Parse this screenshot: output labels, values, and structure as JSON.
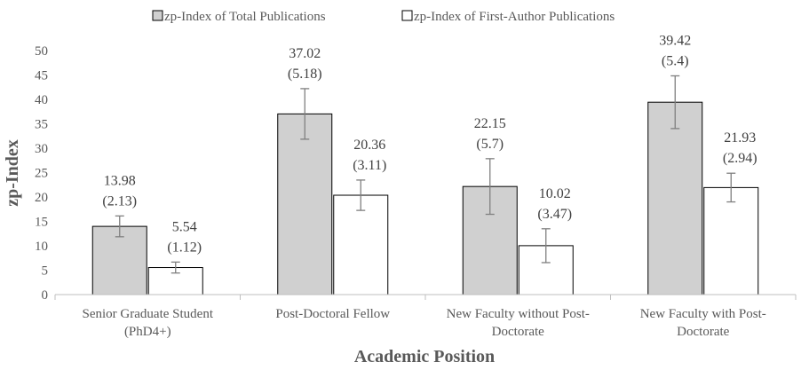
{
  "chart_data": {
    "type": "bar",
    "title": "",
    "xlabel": "Academic Position",
    "ylabel": "zp-Index",
    "ylim": [
      0,
      50
    ],
    "ytick_step": 5,
    "grid": false,
    "legend_position": "top",
    "categories": [
      [
        "Senior Graduate Student",
        "(PhD4+)"
      ],
      [
        "Post-Doctoral Fellow"
      ],
      [
        "New Faculty without Post-",
        "Doctorate"
      ],
      [
        "New Faculty with Post-",
        "Doctorate"
      ]
    ],
    "series": [
      {
        "name": "zp-Index of Total Publications",
        "color": "#d0d0d0",
        "values": [
          13.98,
          37.02,
          22.15,
          39.42
        ],
        "errors": [
          2.13,
          5.18,
          5.7,
          5.4
        ],
        "labels": [
          [
            "13.98",
            "(2.13)"
          ],
          [
            "37.02",
            "(5.18)"
          ],
          [
            "22.15",
            "(5.7)"
          ],
          [
            "39.42",
            "(5.4)"
          ]
        ]
      },
      {
        "name": "zp-Index of First-Author Publications",
        "color": "#ffffff",
        "values": [
          5.54,
          20.36,
          10.02,
          21.93
        ],
        "errors": [
          1.12,
          3.11,
          3.47,
          2.94
        ],
        "labels": [
          [
            "5.54",
            "(1.12)"
          ],
          [
            "20.36",
            "(3.11)"
          ],
          [
            "10.02",
            "(3.47)"
          ],
          [
            "21.93",
            "(2.94)"
          ]
        ]
      }
    ]
  }
}
